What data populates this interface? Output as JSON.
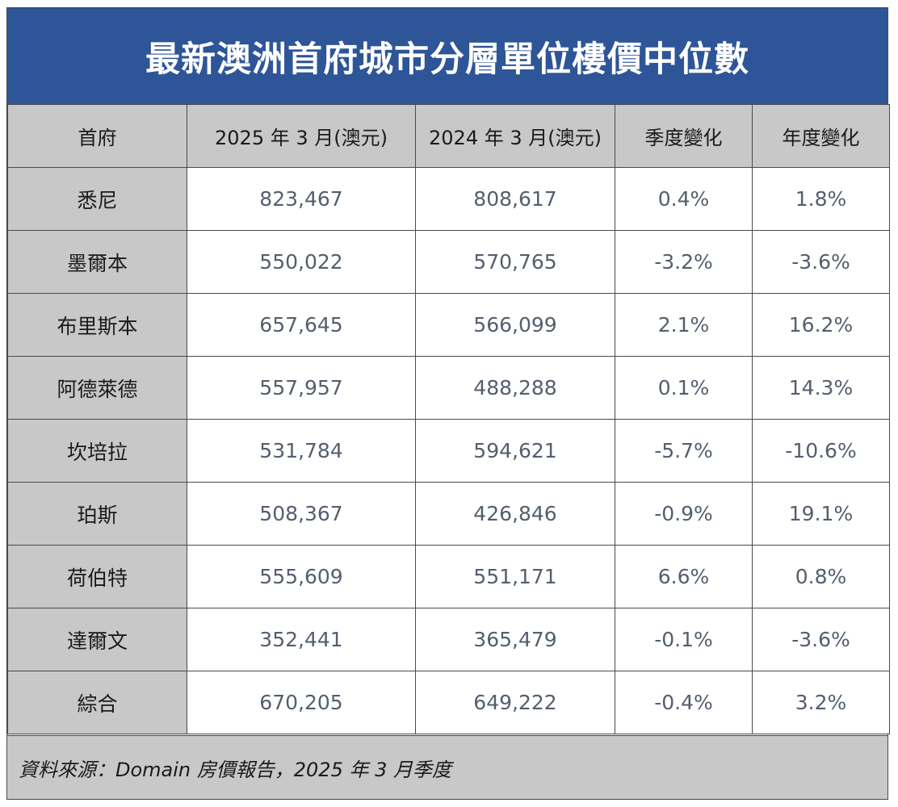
{
  "title": "最新澳洲首府城市分層單位樓價中位數",
  "table": {
    "headers": [
      "首府",
      "2025 年 3 月(澳元)",
      "2024 年 3 月(澳元)",
      "季度變化",
      "年度變化"
    ],
    "rows": [
      {
        "city": "悉尼",
        "mar2025": "823,467",
        "mar2024": "808,617",
        "qoq": "0.4%",
        "yoy": "1.8%"
      },
      {
        "city": "墨爾本",
        "mar2025": "550,022",
        "mar2024": "570,765",
        "qoq": "-3.2%",
        "yoy": "-3.6%"
      },
      {
        "city": "布里斯本",
        "mar2025": "657,645",
        "mar2024": "566,099",
        "qoq": "2.1%",
        "yoy": "16.2%"
      },
      {
        "city": "阿德萊德",
        "mar2025": "557,957",
        "mar2024": "488,288",
        "qoq": "0.1%",
        "yoy": "14.3%"
      },
      {
        "city": "坎培拉",
        "mar2025": "531,784",
        "mar2024": "594,621",
        "qoq": "-5.7%",
        "yoy": "-10.6%"
      },
      {
        "city": "珀斯",
        "mar2025": "508,367",
        "mar2024": "426,846",
        "qoq": "-0.9%",
        "yoy": "19.1%"
      },
      {
        "city": "荷伯特",
        "mar2025": "555,609",
        "mar2024": "551,171",
        "qoq": "6.6%",
        "yoy": "0.8%"
      },
      {
        "city": "達爾文",
        "mar2025": "352,441",
        "mar2024": "365,479",
        "qoq": "-0.1%",
        "yoy": "-3.6%"
      },
      {
        "city": "綜合",
        "mar2025": "670,205",
        "mar2024": "649,222",
        "qoq": "-0.4%",
        "yoy": "3.2%"
      }
    ]
  },
  "source": "資料來源：Domain 房價報告，2025 年 3 月季度",
  "colors": {
    "title_bg": "#2e5597",
    "header_bg": "#c8c8c8",
    "value_text": "#535e6e"
  }
}
